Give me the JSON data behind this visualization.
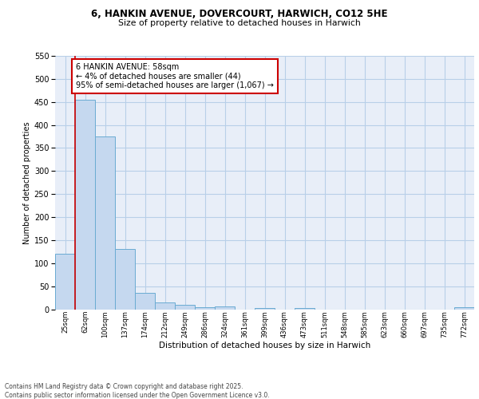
{
  "title_line1": "6, HANKIN AVENUE, DOVERCOURT, HARWICH, CO12 5HE",
  "title_line2": "Size of property relative to detached houses in Harwich",
  "xlabel": "Distribution of detached houses by size in Harwich",
  "ylabel": "Number of detached properties",
  "bar_color": "#c5d8ef",
  "bar_edge_color": "#6aabd2",
  "grid_color": "#b8cfe8",
  "background_color": "#e8eef8",
  "annotation_text": "6 HANKIN AVENUE: 58sqm\n← 4% of detached houses are smaller (44)\n95% of semi-detached houses are larger (1,067) →",
  "vline_color": "#cc0000",
  "categories": [
    "25sqm",
    "62sqm",
    "100sqm",
    "137sqm",
    "174sqm",
    "212sqm",
    "249sqm",
    "286sqm",
    "324sqm",
    "361sqm",
    "399sqm",
    "436sqm",
    "473sqm",
    "511sqm",
    "548sqm",
    "585sqm",
    "623sqm",
    "660sqm",
    "697sqm",
    "735sqm",
    "772sqm"
  ],
  "values": [
    120,
    455,
    375,
    130,
    35,
    14,
    10,
    5,
    6,
    0,
    3,
    0,
    3,
    0,
    0,
    0,
    0,
    0,
    0,
    0,
    5
  ],
  "ylim": [
    0,
    550
  ],
  "yticks": [
    0,
    50,
    100,
    150,
    200,
    250,
    300,
    350,
    400,
    450,
    500,
    550
  ],
  "footer_text": "Contains HM Land Registry data © Crown copyright and database right 2025.\nContains public sector information licensed under the Open Government Licence v3.0."
}
